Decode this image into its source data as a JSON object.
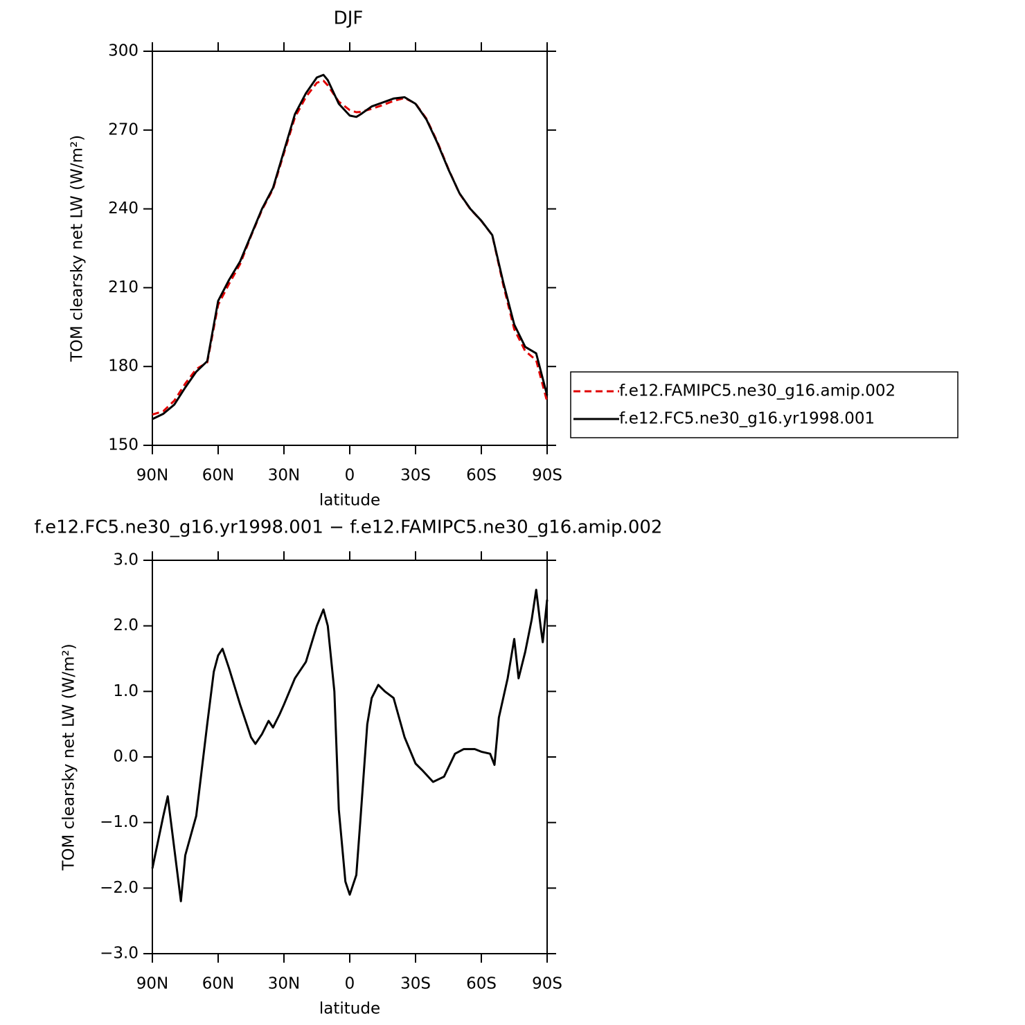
{
  "chart_data": [
    {
      "type": "line",
      "title": "DJF",
      "xlabel": "latitude",
      "ylabel": "TOM clearsky net LW (W/m²)",
      "x": [
        90,
        85,
        80,
        75,
        70,
        65,
        60,
        55,
        50,
        45,
        40,
        35,
        30,
        25,
        20,
        15,
        12,
        10,
        5,
        0,
        -3,
        -5,
        -10,
        -15,
        -20,
        -25,
        -30,
        -35,
        -40,
        -45,
        -50,
        -55,
        -60,
        -65,
        -70,
        -75,
        -80,
        -85,
        -90
      ],
      "series": [
        {
          "name": "f.e12.FAMIPC5.ne30_g16.amip.002",
          "color": "#e00000",
          "dash": true,
          "values": [
            161.7,
            163,
            167,
            173.5,
            179,
            181.5,
            203.5,
            211.5,
            219,
            229.7,
            239.6,
            247.5,
            261.2,
            274.8,
            282.6,
            288,
            288.8,
            287,
            280.8,
            277.6,
            276.8,
            276.9,
            278.1,
            279.5,
            281.1,
            282.2,
            280.1,
            274.3,
            265.4,
            255.2,
            245.9,
            239.9,
            235.4,
            230,
            211,
            194.2,
            185.9,
            182.4,
            166.6
          ]
        },
        {
          "name": "f.e12.FC5.ne30_g16.yr1998.001",
          "color": "#000000",
          "dash": false,
          "values": [
            160,
            162,
            165.5,
            172,
            178,
            182,
            205,
            213,
            220,
            230,
            240,
            248,
            262,
            276,
            284,
            290,
            291,
            289,
            280,
            275.5,
            275,
            276,
            279,
            280.5,
            282,
            282.5,
            280,
            274,
            265,
            255,
            246,
            240,
            235.5,
            230,
            212,
            196,
            187.5,
            185,
            169
          ]
        }
      ],
      "xlim": [
        90,
        -90
      ],
      "xticks": [
        {
          "value": 90,
          "label": "90N"
        },
        {
          "value": 60,
          "label": "60N"
        },
        {
          "value": 30,
          "label": "30N"
        },
        0,
        {
          "value": -30,
          "label": "30S"
        },
        {
          "value": -60,
          "label": "60S"
        },
        {
          "value": -90,
          "label": "90S"
        }
      ],
      "ylim": [
        150,
        300
      ],
      "yticks": [
        150,
        180,
        210,
        240,
        270,
        300
      ],
      "legend": "right"
    },
    {
      "type": "line",
      "title": "f.e12.FC5.ne30_g16.yr1998.001 − f.e12.FAMIPC5.ne30_g16.amip.002",
      "xlabel": "latitude",
      "ylabel": "TOM clearsky net LW (W/m²)",
      "x": [
        90,
        85,
        83,
        80,
        77,
        75,
        70,
        65,
        62,
        60,
        58,
        55,
        50,
        45,
        43,
        40,
        37,
        35,
        32,
        30,
        25,
        20,
        15,
        12,
        10,
        7,
        5,
        2,
        0,
        -3,
        -5,
        -8,
        -10,
        -13,
        -16,
        -20,
        -25,
        -30,
        -33,
        -38,
        -43,
        -48,
        -52,
        -57,
        -60,
        -64,
        -66,
        -68,
        -72,
        -75,
        -77,
        -80,
        -83,
        -85,
        -87,
        -88,
        -90
      ],
      "series": [
        {
          "color": "#000000",
          "dash": false,
          "values": [
            -1.7,
            -0.9,
            -0.6,
            -1.4,
            -2.2,
            -1.5,
            -0.9,
            0.5,
            1.3,
            1.55,
            1.65,
            1.35,
            0.8,
            0.3,
            0.2,
            0.35,
            0.55,
            0.45,
            0.65,
            0.8,
            1.2,
            1.45,
            2.0,
            2.25,
            2.0,
            1.0,
            -0.8,
            -1.9,
            -2.1,
            -1.8,
            -0.9,
            0.5,
            0.9,
            1.1,
            1.0,
            0.9,
            0.3,
            -0.1,
            -0.2,
            -0.38,
            -0.3,
            0.05,
            0.12,
            0.12,
            0.08,
            0.05,
            -0.12,
            0.6,
            1.2,
            1.8,
            1.2,
            1.6,
            2.1,
            2.55,
            2.0,
            1.75,
            2.4
          ]
        }
      ],
      "xlim": [
        90,
        -90
      ],
      "xticks": [
        {
          "value": 90,
          "label": "90N"
        },
        {
          "value": 60,
          "label": "60N"
        },
        {
          "value": 30,
          "label": "30N"
        },
        0,
        {
          "value": -30,
          "label": "30S"
        },
        {
          "value": -60,
          "label": "60S"
        },
        {
          "value": -90,
          "label": "90S"
        }
      ],
      "ylim": [
        -3,
        3
      ],
      "yticks": [
        {
          "value": -3,
          "label": "−3.0"
        },
        {
          "value": -2,
          "label": "−2.0"
        },
        {
          "value": -1,
          "label": "−1.0"
        },
        {
          "value": 0,
          "label": "0.0"
        },
        {
          "value": 1,
          "label": "1.0"
        },
        {
          "value": 2,
          "label": "2.0"
        },
        {
          "value": 3,
          "label": "3.0"
        }
      ]
    }
  ]
}
